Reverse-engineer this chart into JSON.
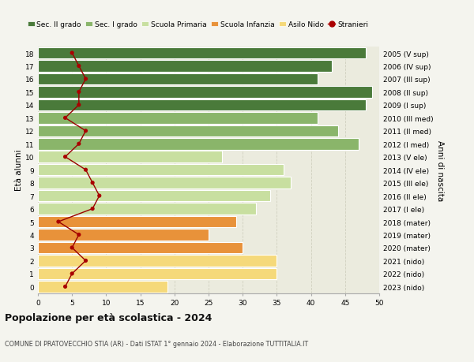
{
  "ages": [
    0,
    1,
    2,
    3,
    4,
    5,
    6,
    7,
    8,
    9,
    10,
    11,
    12,
    13,
    14,
    15,
    16,
    17,
    18
  ],
  "bar_values": [
    19,
    35,
    35,
    30,
    25,
    29,
    32,
    34,
    37,
    36,
    27,
    47,
    44,
    41,
    48,
    49,
    41,
    43,
    48
  ],
  "right_labels": [
    "2023 (nido)",
    "2022 (nido)",
    "2021 (nido)",
    "2020 (mater)",
    "2019 (mater)",
    "2018 (mater)",
    "2017 (I ele)",
    "2016 (II ele)",
    "2015 (III ele)",
    "2014 (IV ele)",
    "2013 (V ele)",
    "2012 (I med)",
    "2011 (II med)",
    "2010 (III med)",
    "2009 (I sup)",
    "2008 (II sup)",
    "2007 (III sup)",
    "2006 (IV sup)",
    "2005 (V sup)"
  ],
  "stranieri_values": [
    4,
    5,
    7,
    5,
    6,
    3,
    8,
    9,
    8,
    7,
    4,
    6,
    7,
    4,
    6,
    6,
    7,
    6,
    5
  ],
  "bar_colors": [
    "#f5d97a",
    "#f5d97a",
    "#f5d97a",
    "#e8923a",
    "#e8923a",
    "#e8923a",
    "#c8dfa0",
    "#c8dfa0",
    "#c8dfa0",
    "#c8dfa0",
    "#c8dfa0",
    "#8ab56a",
    "#8ab56a",
    "#8ab56a",
    "#4a7a3a",
    "#4a7a3a",
    "#4a7a3a",
    "#4a7a3a",
    "#4a7a3a"
  ],
  "legend_labels": [
    "Sec. II grado",
    "Sec. I grado",
    "Scuola Primaria",
    "Scuola Infanzia",
    "Asilo Nido",
    "Stranieri"
  ],
  "legend_colors": [
    "#4a7a3a",
    "#8ab56a",
    "#c8dfa0",
    "#e8923a",
    "#f5d97a",
    "#aa0000"
  ],
  "ylabel_left": "Età alunni",
  "ylabel_right": "Anni di nascita",
  "title": "Popolazione per età scolastica - 2024",
  "subtitle": "COMUNE DI PRATOVECCHIO STIA (AR) - Dati ISTAT 1° gennaio 2024 - Elaborazione TUTTITALIA.IT",
  "xlim": [
    0,
    50
  ],
  "bg_color": "#f4f4ee",
  "bar_bg_color": "#ebebde",
  "grid_color": "#d0d0c0",
  "stranieri_line_color": "#990000",
  "stranieri_dot_color": "#aa0000"
}
